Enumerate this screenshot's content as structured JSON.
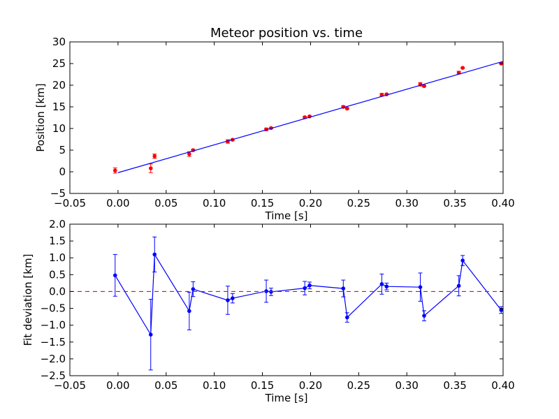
{
  "chart_data": [
    {
      "type": "scatter",
      "title": "Meteor position vs. time",
      "xlabel": "Time [s]",
      "ylabel": "Position [km]",
      "xlim": [
        -0.05,
        0.4
      ],
      "ylim": [
        -5,
        30
      ],
      "xticks": [
        "−0.05",
        "0.00",
        "0.05",
        "0.10",
        "0.15",
        "0.20",
        "0.25",
        "0.30",
        "0.35",
        "0.40"
      ],
      "yticks": [
        "−5",
        "0",
        "5",
        "10",
        "15",
        "20",
        "25",
        "30"
      ],
      "grid": false,
      "series": [
        {
          "kind": "points-with-errorbars",
          "color": "#ff0000",
          "points": [
            {
              "x": -0.003,
              "y": 0.3,
              "err": 0.6
            },
            {
              "x": 0.034,
              "y": 0.8,
              "err": 1.0
            },
            {
              "x": 0.038,
              "y": 3.6,
              "err": 0.5
            },
            {
              "x": 0.074,
              "y": 4.1,
              "err": 0.55
            },
            {
              "x": 0.078,
              "y": 5.0,
              "err": 0.2
            },
            {
              "x": 0.114,
              "y": 7.0,
              "err": 0.4
            },
            {
              "x": 0.119,
              "y": 7.4,
              "err": 0.15
            },
            {
              "x": 0.154,
              "y": 9.8,
              "err": 0.3
            },
            {
              "x": 0.159,
              "y": 10.1,
              "err": 0.1
            },
            {
              "x": 0.194,
              "y": 12.6,
              "err": 0.2
            },
            {
              "x": 0.199,
              "y": 12.8,
              "err": 0.1
            },
            {
              "x": 0.234,
              "y": 15.0,
              "err": 0.25
            },
            {
              "x": 0.238,
              "y": 14.6,
              "err": 0.15
            },
            {
              "x": 0.274,
              "y": 17.8,
              "err": 0.3
            },
            {
              "x": 0.279,
              "y": 17.9,
              "err": 0.1
            },
            {
              "x": 0.314,
              "y": 20.2,
              "err": 0.4
            },
            {
              "x": 0.318,
              "y": 19.8,
              "err": 0.15
            },
            {
              "x": 0.354,
              "y": 22.9,
              "err": 0.3
            },
            {
              "x": 0.358,
              "y": 24.0,
              "err": 0.15
            },
            {
              "x": 0.398,
              "y": 25.0,
              "err": 0.1
            }
          ]
        },
        {
          "kind": "line",
          "color": "#0000ff",
          "x": [
            0.0,
            0.4
          ],
          "y": [
            -0.2,
            25.5
          ]
        }
      ]
    },
    {
      "type": "line",
      "title": "",
      "xlabel": "Time [s]",
      "ylabel": "Fit deviation [km]",
      "xlim": [
        -0.05,
        0.4
      ],
      "ylim": [
        -2.5,
        2.0
      ],
      "xticks": [
        "−0.05",
        "0.00",
        "0.05",
        "0.10",
        "0.15",
        "0.20",
        "0.25",
        "0.30",
        "0.35",
        "0.40"
      ],
      "yticks": [
        "−2.5",
        "−2.0",
        "−1.5",
        "−1.0",
        "−0.5",
        "0.0",
        "0.5",
        "1.0",
        "1.5",
        "2.0"
      ],
      "grid": false,
      "series": [
        {
          "kind": "line-with-errorbars",
          "color": "#0000ff",
          "points": [
            {
              "x": -0.003,
              "y": 0.48,
              "err": 0.62
            },
            {
              "x": 0.034,
              "y": -1.28,
              "err": 1.05
            },
            {
              "x": 0.038,
              "y": 1.1,
              "err": 0.52
            },
            {
              "x": 0.074,
              "y": -0.58,
              "err": 0.56
            },
            {
              "x": 0.078,
              "y": 0.07,
              "err": 0.22
            },
            {
              "x": 0.114,
              "y": -0.26,
              "err": 0.42
            },
            {
              "x": 0.119,
              "y": -0.2,
              "err": 0.14
            },
            {
              "x": 0.154,
              "y": 0.01,
              "err": 0.33
            },
            {
              "x": 0.159,
              "y": -0.01,
              "err": 0.11
            },
            {
              "x": 0.194,
              "y": 0.1,
              "err": 0.2
            },
            {
              "x": 0.199,
              "y": 0.18,
              "err": 0.1
            },
            {
              "x": 0.234,
              "y": 0.09,
              "err": 0.25
            },
            {
              "x": 0.238,
              "y": -0.77,
              "err": 0.14
            },
            {
              "x": 0.274,
              "y": 0.22,
              "err": 0.3
            },
            {
              "x": 0.279,
              "y": 0.15,
              "err": 0.1
            },
            {
              "x": 0.314,
              "y": 0.13,
              "err": 0.42
            },
            {
              "x": 0.318,
              "y": -0.72,
              "err": 0.15
            },
            {
              "x": 0.354,
              "y": 0.17,
              "err": 0.3
            },
            {
              "x": 0.358,
              "y": 0.92,
              "err": 0.15
            },
            {
              "x": 0.398,
              "y": -0.55,
              "err": 0.1
            }
          ]
        },
        {
          "kind": "reference-line",
          "style": "dashed",
          "color": "#ff0000",
          "y": 0.0
        }
      ]
    }
  ]
}
